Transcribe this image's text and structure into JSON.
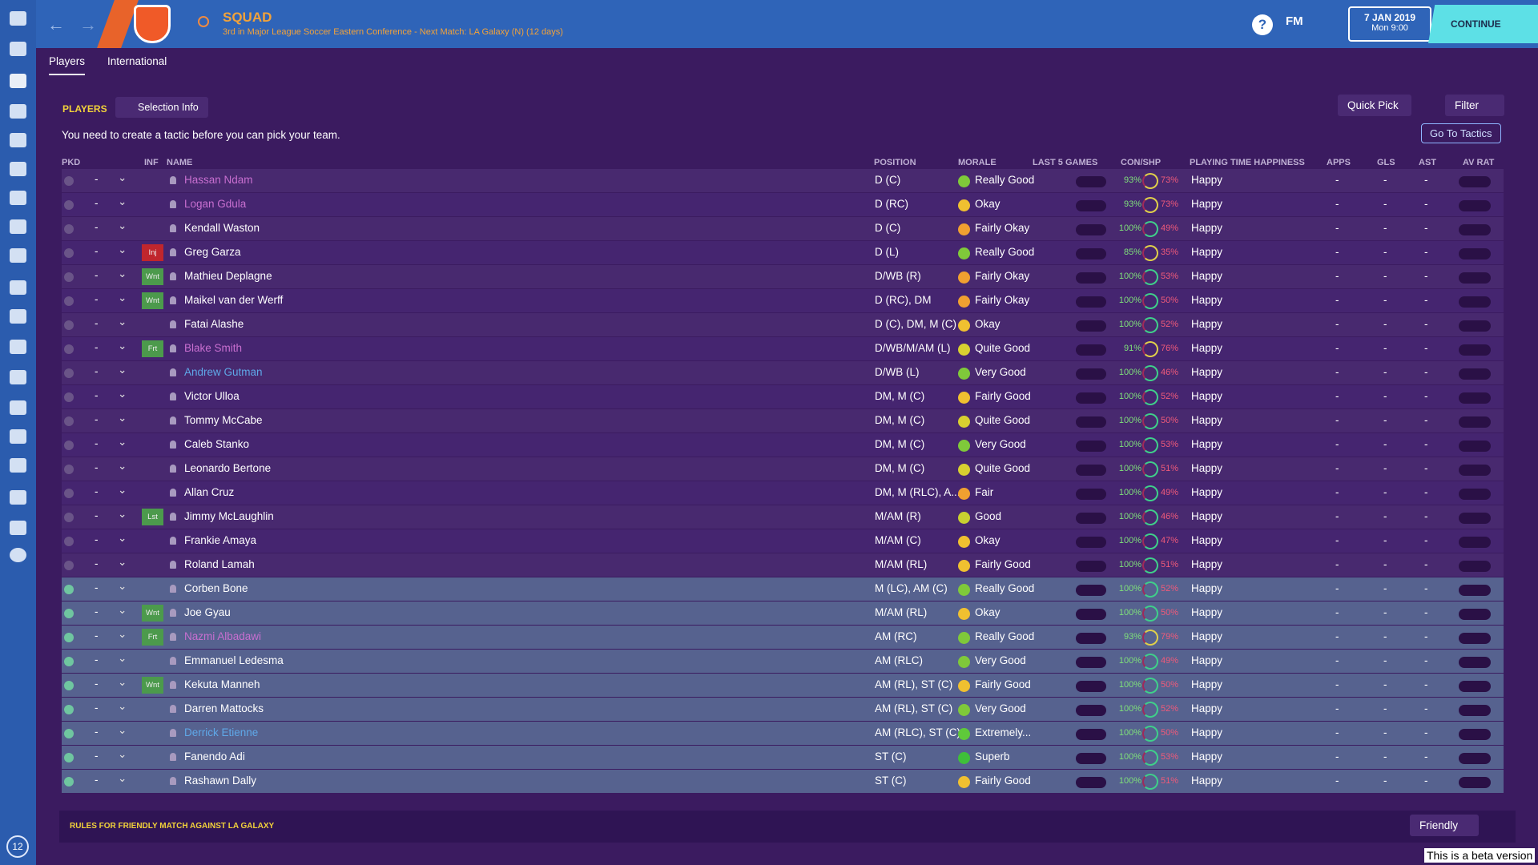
{
  "header": {
    "title": "SQUAD",
    "subtitle": "3rd in Major League Soccer Eastern Conference - Next Match: LA Galaxy (N) (12 days)",
    "help": "?",
    "logo": "FM",
    "date": "7 JAN 2019",
    "time": "Mon 9:00",
    "continue": "CONTINUE"
  },
  "tabs": [
    "Players",
    "International"
  ],
  "toolbar": {
    "label": "PLAYERS",
    "selection": "Selection Info",
    "quick_pick": "Quick Pick",
    "filter": "Filter",
    "message": "You need to create a tactic before you can pick your team.",
    "go_to_tactics": "Go To Tactics"
  },
  "columns": {
    "pkd": "PKD",
    "inf": "INF",
    "name": "NAME",
    "position": "POSITION",
    "morale": "MORALE",
    "last5": "LAST 5 GAMES",
    "con": "CON/SHP",
    "happiness": "PLAYING TIME HAPPINESS",
    "apps": "APPS",
    "gls": "GLS",
    "ast": "AST",
    "avrat": "AV RAT"
  },
  "rows": [
    {
      "pkd": "-",
      "name": "Hassan Ndam",
      "name_color": "#c86fd0",
      "position": "D (C)",
      "morale": "Really Good",
      "morale_color": "#7fc93a",
      "con": "93%",
      "shp": "73%",
      "happiness": "Happy",
      "apps": "-",
      "gls": "-",
      "ast": "-",
      "selected": false
    },
    {
      "pkd": "-",
      "name": "Logan Gdula",
      "name_color": "#c86fd0",
      "position": "D (RC)",
      "morale": "Okay",
      "morale_color": "#f0c030",
      "con": "93%",
      "shp": "73%",
      "happiness": "Happy",
      "apps": "-",
      "gls": "-",
      "ast": "-",
      "selected": false
    },
    {
      "pkd": "-",
      "name": "Kendall Waston",
      "position": "D (C)",
      "morale": "Fairly Okay",
      "morale_color": "#f0a030",
      "con": "100%",
      "shp": "49%",
      "happiness": "Happy",
      "apps": "-",
      "gls": "-",
      "ast": "-",
      "selected": false
    },
    {
      "pkd": "-",
      "inf": "Inj",
      "inf_color": "#c0262d",
      "name": "Greg Garza",
      "position": "D (L)",
      "morale": "Really Good",
      "morale_color": "#7fc93a",
      "con": "85%",
      "shp": "35%",
      "happiness": "Happy",
      "apps": "-",
      "gls": "-",
      "ast": "-",
      "selected": false
    },
    {
      "pkd": "-",
      "inf": "Wnt",
      "inf_color": "#4c9a4c",
      "name": "Mathieu Deplagne",
      "position": "D/WB (R)",
      "morale": "Fairly Okay",
      "morale_color": "#f0a030",
      "con": "100%",
      "shp": "53%",
      "happiness": "Happy",
      "apps": "-",
      "gls": "-",
      "ast": "-",
      "selected": false
    },
    {
      "pkd": "-",
      "inf": "Wnt",
      "inf_color": "#4c9a4c",
      "name": "Maikel van der Werff",
      "position": "D (RC), DM",
      "morale": "Fairly Okay",
      "morale_color": "#f0a030",
      "con": "100%",
      "shp": "50%",
      "happiness": "Happy",
      "apps": "-",
      "gls": "-",
      "ast": "-",
      "selected": false
    },
    {
      "pkd": "-",
      "name": "Fatai Alashe",
      "position": "D (C), DM, M (C)",
      "morale": "Okay",
      "morale_color": "#f0c030",
      "con": "100%",
      "shp": "52%",
      "happiness": "Happy",
      "apps": "-",
      "gls": "-",
      "ast": "-",
      "selected": false
    },
    {
      "pkd": "-",
      "inf": "Frt",
      "inf_color": "#4c9a4c",
      "name": "Blake Smith",
      "name_color": "#c86fd0",
      "position": "D/WB/M/AM (L)",
      "morale": "Quite Good",
      "morale_color": "#d8d030",
      "con": "91%",
      "shp": "76%",
      "happiness": "Happy",
      "apps": "-",
      "gls": "-",
      "ast": "-",
      "selected": false
    },
    {
      "pkd": "-",
      "name": "Andrew Gutman",
      "name_color": "#5fa8e8",
      "position": "D/WB (L)",
      "morale": "Very Good",
      "morale_color": "#7fc93a",
      "con": "100%",
      "shp": "46%",
      "happiness": "Happy",
      "apps": "-",
      "gls": "-",
      "ast": "-",
      "selected": false
    },
    {
      "pkd": "-",
      "name": "Victor Ulloa",
      "position": "DM, M (C)",
      "morale": "Fairly Good",
      "morale_color": "#f0c030",
      "con": "100%",
      "shp": "52%",
      "happiness": "Happy",
      "apps": "-",
      "gls": "-",
      "ast": "-",
      "selected": false
    },
    {
      "pkd": "-",
      "name": "Tommy McCabe",
      "position": "DM, M (C)",
      "morale": "Quite Good",
      "morale_color": "#d8d030",
      "con": "100%",
      "shp": "50%",
      "happiness": "Happy",
      "apps": "-",
      "gls": "-",
      "ast": "-",
      "selected": false
    },
    {
      "pkd": "-",
      "name": "Caleb Stanko",
      "position": "DM, M (C)",
      "morale": "Very Good",
      "morale_color": "#7fc93a",
      "con": "100%",
      "shp": "53%",
      "happiness": "Happy",
      "apps": "-",
      "gls": "-",
      "ast": "-",
      "selected": false
    },
    {
      "pkd": "-",
      "name": "Leonardo Bertone",
      "position": "DM, M (C)",
      "morale": "Quite Good",
      "morale_color": "#d8d030",
      "con": "100%",
      "shp": "51%",
      "happiness": "Happy",
      "apps": "-",
      "gls": "-",
      "ast": "-",
      "selected": false
    },
    {
      "pkd": "-",
      "name": "Allan Cruz",
      "position": "DM, M (RLC), A...",
      "morale": "Fair",
      "morale_color": "#f0a030",
      "con": "100%",
      "shp": "49%",
      "happiness": "Happy",
      "apps": "-",
      "gls": "-",
      "ast": "-",
      "selected": false
    },
    {
      "pkd": "-",
      "inf": "Lst",
      "inf_color": "#4c9a4c",
      "name": "Jimmy McLaughlin",
      "position": "M/AM (R)",
      "morale": "Good",
      "morale_color": "#c8d030",
      "con": "100%",
      "shp": "46%",
      "happiness": "Happy",
      "apps": "-",
      "gls": "-",
      "ast": "-",
      "selected": false
    },
    {
      "pkd": "-",
      "name": "Frankie Amaya",
      "position": "M/AM (C)",
      "morale": "Okay",
      "morale_color": "#f0c030",
      "con": "100%",
      "shp": "47%",
      "happiness": "Happy",
      "apps": "-",
      "gls": "-",
      "ast": "-",
      "selected": false
    },
    {
      "pkd": "-",
      "name": "Roland Lamah",
      "position": "M/AM (RL)",
      "morale": "Fairly Good",
      "morale_color": "#f0c030",
      "con": "100%",
      "shp": "51%",
      "happiness": "Happy",
      "apps": "-",
      "gls": "-",
      "ast": "-",
      "selected": false
    },
    {
      "pkd": "-",
      "name": "Corben Bone",
      "position": "M (LC), AM (C)",
      "morale": "Really Good",
      "morale_color": "#7fc93a",
      "con": "100%",
      "shp": "52%",
      "happiness": "Happy",
      "apps": "-",
      "gls": "-",
      "ast": "-",
      "selected": true
    },
    {
      "pkd": "-",
      "inf": "Wnt",
      "inf_color": "#4c9a4c",
      "name": "Joe Gyau",
      "position": "M/AM (RL)",
      "morale": "Okay",
      "morale_color": "#f0c030",
      "con": "100%",
      "shp": "50%",
      "happiness": "Happy",
      "apps": "-",
      "gls": "-",
      "ast": "-",
      "selected": true
    },
    {
      "pkd": "-",
      "inf": "Frt",
      "inf_color": "#4c9a4c",
      "name": "Nazmi Albadawi",
      "name_color": "#c86fd0",
      "position": "AM (RC)",
      "morale": "Really Good",
      "morale_color": "#7fc93a",
      "con": "93%",
      "shp": "79%",
      "happiness": "Happy",
      "apps": "-",
      "gls": "-",
      "ast": "-",
      "selected": true
    },
    {
      "pkd": "-",
      "name": "Emmanuel Ledesma",
      "position": "AM (RLC)",
      "morale": "Very Good",
      "morale_color": "#7fc93a",
      "con": "100%",
      "shp": "49%",
      "happiness": "Happy",
      "apps": "-",
      "gls": "-",
      "ast": "-",
      "selected": true
    },
    {
      "pkd": "-",
      "inf": "Wnt",
      "inf_color": "#4c9a4c",
      "name": "Kekuta Manneh",
      "position": "AM (RL), ST (C)",
      "morale": "Fairly Good",
      "morale_color": "#f0c030",
      "con": "100%",
      "shp": "50%",
      "happiness": "Happy",
      "apps": "-",
      "gls": "-",
      "ast": "-",
      "selected": true
    },
    {
      "pkd": "-",
      "name": "Darren Mattocks",
      "position": "AM (RL), ST (C)",
      "morale": "Very Good",
      "morale_color": "#7fc93a",
      "con": "100%",
      "shp": "52%",
      "happiness": "Happy",
      "apps": "-",
      "gls": "-",
      "ast": "-",
      "selected": true
    },
    {
      "pkd": "-",
      "name": "Derrick Etienne",
      "name_color": "#5fa8e8",
      "position": "AM (RLC), ST (C)",
      "morale": "Extremely...",
      "morale_color": "#5fc93a",
      "con": "100%",
      "shp": "50%",
      "happiness": "Happy",
      "apps": "-",
      "gls": "-",
      "ast": "-",
      "selected": true
    },
    {
      "pkd": "-",
      "name": "Fanendo Adi",
      "position": "ST (C)",
      "morale": "Superb",
      "morale_color": "#3fbf3a",
      "con": "100%",
      "shp": "53%",
      "happiness": "Happy",
      "apps": "-",
      "gls": "-",
      "ast": "-",
      "selected": true
    },
    {
      "pkd": "-",
      "name": "Rashawn Dally",
      "position": "ST (C)",
      "morale": "Fairly Good",
      "morale_color": "#f0c030",
      "con": "100%",
      "shp": "51%",
      "happiness": "Happy",
      "apps": "-",
      "gls": "-",
      "ast": "-",
      "selected": true
    }
  ],
  "footer": {
    "rules": "RULES FOR FRIENDLY MATCH AGAINST LA GALAXY",
    "mode": "Friendly"
  },
  "sidebar_badge": "12",
  "beta": "This is a beta version"
}
